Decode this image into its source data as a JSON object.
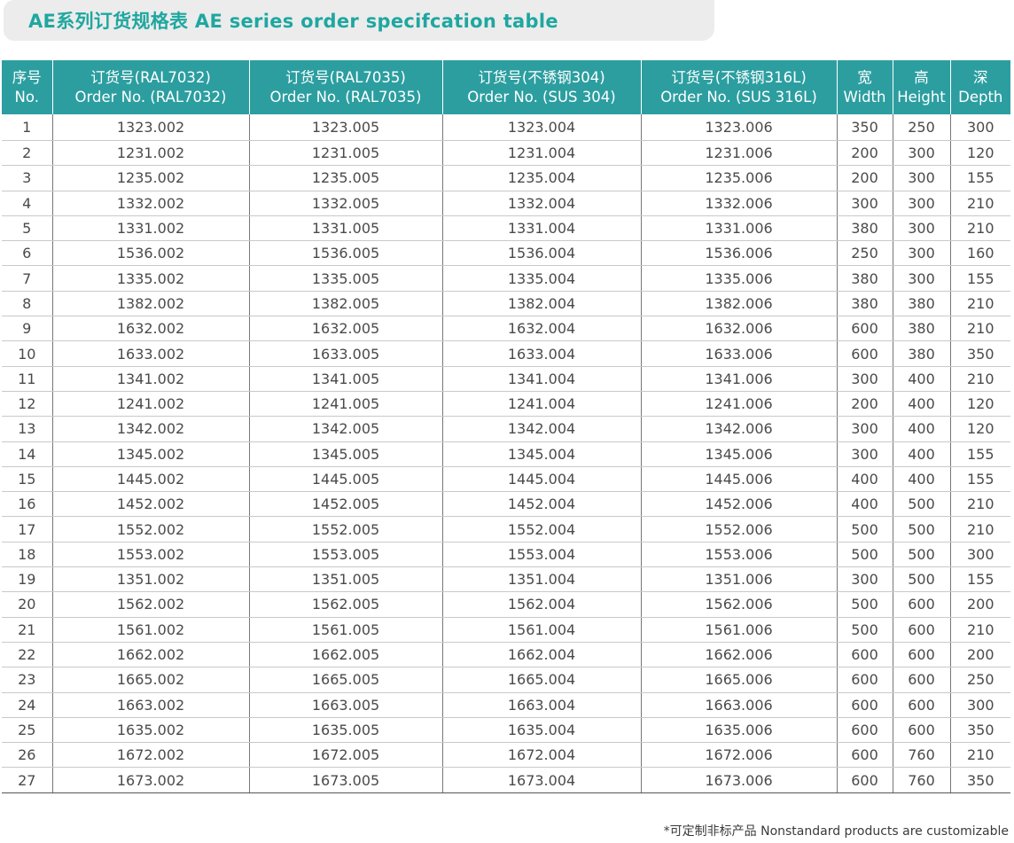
{
  "title": "AE系列订货规格表 AE series order specifcation table",
  "headers": [
    {
      "cn": "序号",
      "en": "No."
    },
    {
      "cn": "订货号(RAL7032)",
      "en": "Order No. (RAL7032)"
    },
    {
      "cn": "订货号(RAL7035)",
      "en": "Order No. (RAL7035)"
    },
    {
      "cn": "订货号(不锈钢304)",
      "en": "Order No. (SUS 304)"
    },
    {
      "cn": "订货号(不锈钢316L)",
      "en": "Order No. (SUS 316L)"
    },
    {
      "cn": "宽",
      "en": "Width"
    },
    {
      "cn": "高",
      "en": "Height"
    },
    {
      "cn": "深",
      "en": "Depth"
    }
  ],
  "rows": [
    [
      "1",
      "1323.002",
      "1323.005",
      "1323.004",
      "1323.006",
      "350",
      "250",
      "300"
    ],
    [
      "2",
      "1231.002",
      "1231.005",
      "1231.004",
      "1231.006",
      "200",
      "300",
      "120"
    ],
    [
      "3",
      "1235.002",
      "1235.005",
      "1235.004",
      "1235.006",
      "200",
      "300",
      "155"
    ],
    [
      "4",
      "1332.002",
      "1332.005",
      "1332.004",
      "1332.006",
      "300",
      "300",
      "210"
    ],
    [
      "5",
      "1331.002",
      "1331.005",
      "1331.004",
      "1331.006",
      "380",
      "300",
      "210"
    ],
    [
      "6",
      "1536.002",
      "1536.005",
      "1536.004",
      "1536.006",
      "250",
      "300",
      "160"
    ],
    [
      "7",
      "1335.002",
      "1335.005",
      "1335.004",
      "1335.006",
      "380",
      "300",
      "155"
    ],
    [
      "8",
      "1382.002",
      "1382.005",
      "1382.004",
      "1382.006",
      "380",
      "380",
      "210"
    ],
    [
      "9",
      "1632.002",
      "1632.005",
      "1632.004",
      "1632.006",
      "600",
      "380",
      "210"
    ],
    [
      "10",
      "1633.002",
      "1633.005",
      "1633.004",
      "1633.006",
      "600",
      "380",
      "350"
    ],
    [
      "11",
      "1341.002",
      "1341.005",
      "1341.004",
      "1341.006",
      "300",
      "400",
      "210"
    ],
    [
      "12",
      "1241.002",
      "1241.005",
      "1241.004",
      "1241.006",
      "200",
      "400",
      "120"
    ],
    [
      "13",
      "1342.002",
      "1342.005",
      "1342.004",
      "1342.006",
      "300",
      "400",
      "120"
    ],
    [
      "14",
      "1345.002",
      "1345.005",
      "1345.004",
      "1345.006",
      "300",
      "400",
      "155"
    ],
    [
      "15",
      "1445.002",
      "1445.005",
      "1445.004",
      "1445.006",
      "400",
      "400",
      "155"
    ],
    [
      "16",
      "1452.002",
      "1452.005",
      "1452.004",
      "1452.006",
      "400",
      "500",
      "210"
    ],
    [
      "17",
      "1552.002",
      "1552.005",
      "1552.004",
      "1552.006",
      "500",
      "500",
      "210"
    ],
    [
      "18",
      "1553.002",
      "1553.005",
      "1553.004",
      "1553.006",
      "500",
      "500",
      "300"
    ],
    [
      "19",
      "1351.002",
      "1351.005",
      "1351.004",
      "1351.006",
      "300",
      "500",
      "155"
    ],
    [
      "20",
      "1562.002",
      "1562.005",
      "1562.004",
      "1562.006",
      "500",
      "600",
      "200"
    ],
    [
      "21",
      "1561.002",
      "1561.005",
      "1561.004",
      "1561.006",
      "500",
      "600",
      "210"
    ],
    [
      "22",
      "1662.002",
      "1662.005",
      "1662.004",
      "1662.006",
      "600",
      "600",
      "200"
    ],
    [
      "23",
      "1665.002",
      "1665.005",
      "1665.004",
      "1665.006",
      "600",
      "600",
      "250"
    ],
    [
      "24",
      "1663.002",
      "1663.005",
      "1663.004",
      "1663.006",
      "600",
      "600",
      "300"
    ],
    [
      "25",
      "1635.002",
      "1635.005",
      "1635.004",
      "1635.006",
      "600",
      "600",
      "350"
    ],
    [
      "26",
      "1672.002",
      "1672.005",
      "1672.004",
      "1672.006",
      "600",
      "760",
      "210"
    ],
    [
      "27",
      "1673.002",
      "1673.005",
      "1673.004",
      "1673.006",
      "600",
      "760",
      "350"
    ]
  ],
  "footnote": "*可定制非标产品  Nonstandard products are customizable",
  "colors": {
    "title": "#1fa7a0",
    "header_bg": "#2c9ea0",
    "title_bar_bg": "#ececec",
    "text": "#4a4a4a"
  }
}
